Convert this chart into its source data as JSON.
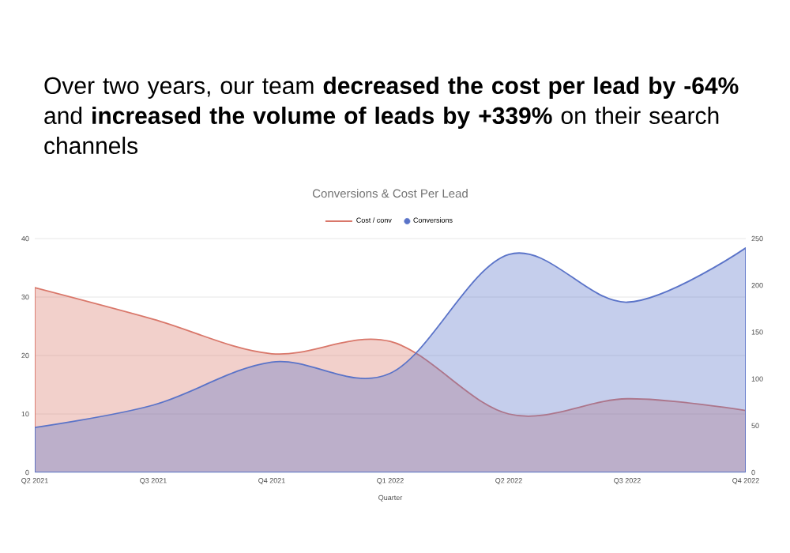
{
  "chart_data": {
    "type": "area",
    "title": "Over two years, our team **decreased the cost per lead by -64%** and **increased the volume of leads by +339%** on their search channels",
    "subtitle": "Conversions & Cost Per Lead",
    "xlabel": "Quarter",
    "categories": [
      "Q2 2021",
      "Q3 2021",
      "Q4 2021",
      "Q1 2022",
      "Q2 2022",
      "Q3 2022",
      "Q4 2022"
    ],
    "series": [
      {
        "name": "Cost / conv",
        "color": "#d9776a",
        "values": [
          31.6,
          26.2,
          20.3,
          22.4,
          10.0,
          12.6,
          10.6
        ]
      },
      {
        "name": "Conversions",
        "color": "#5a73c8",
        "axis": "y2",
        "values": [
          48,
          72,
          118,
          106,
          233,
          182,
          240
        ]
      }
    ],
    "ylim": [
      0,
      40
    ],
    "yticks": [
      0,
      10,
      20,
      30,
      40
    ],
    "y2lim": [
      0,
      250
    ],
    "y2ticks": [
      0,
      50,
      100,
      150,
      200,
      250
    ],
    "grid": "y",
    "legend": "top",
    "marker": "none",
    "line_style": "solid"
  }
}
